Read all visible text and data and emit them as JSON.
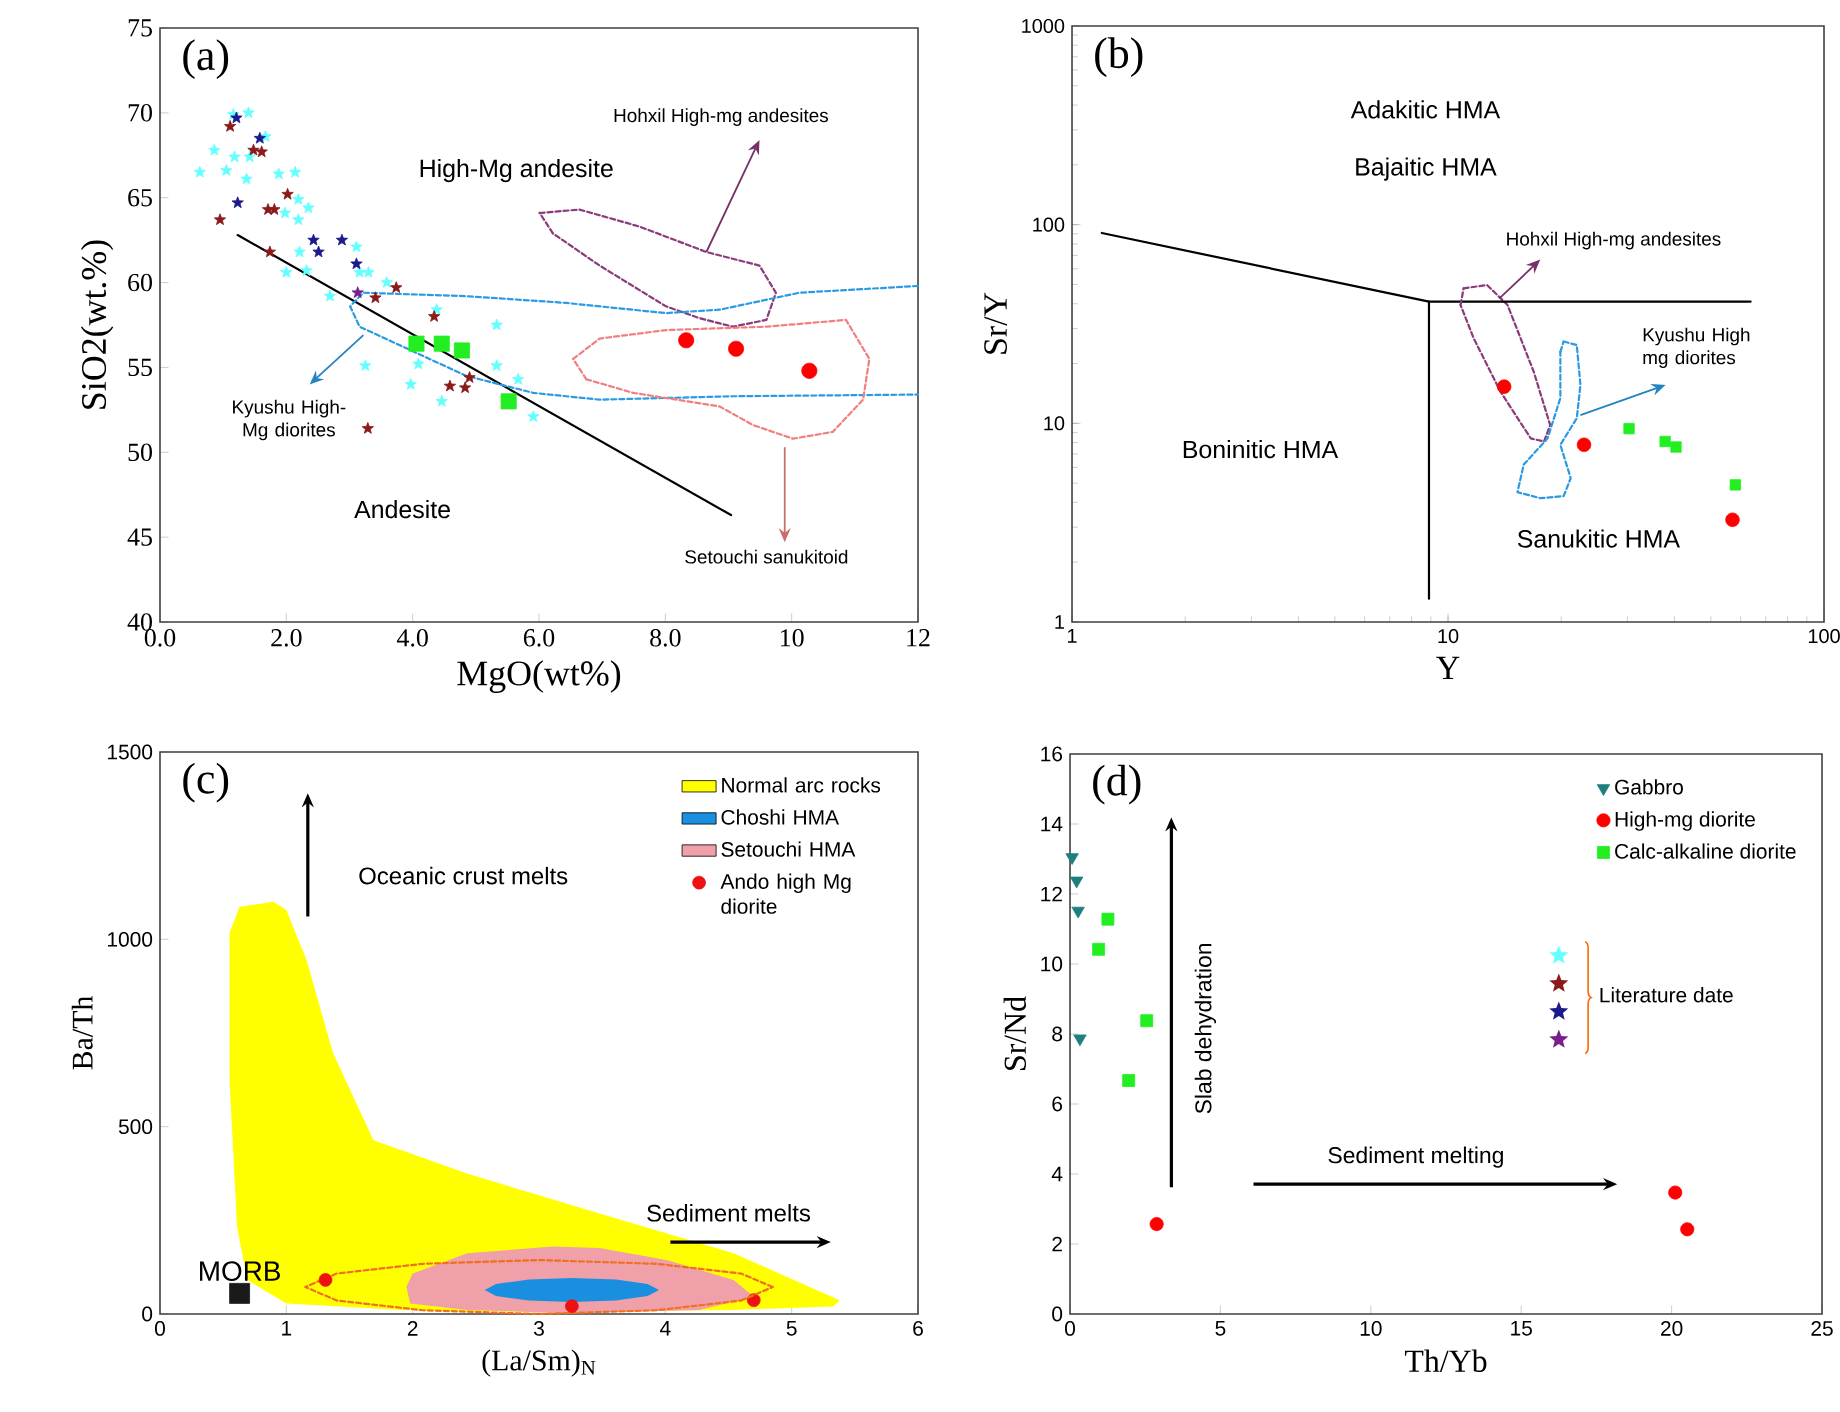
{
  "chart_data": [
    {
      "type": "scatter",
      "title": "(a)",
      "xlabel": "MgO(wt%)",
      "ylabel": "SiO2(wt.%)",
      "xlim": [
        0,
        12
      ],
      "ylim": [
        40,
        75
      ],
      "xticks": [
        {
          "value": 0,
          "label": "0.0"
        },
        {
          "value": 2,
          "label": "2.0"
        },
        {
          "value": 4,
          "label": "4.0"
        },
        {
          "value": 6,
          "label": "6.0"
        },
        {
          "value": 8,
          "label": "8.0"
        },
        10,
        12
      ],
      "yticks": [
        40,
        45,
        50,
        55,
        60,
        65,
        70,
        75
      ],
      "annotations": [
        "High-Mg andesite",
        "Andesite",
        {
          "text": "Hohxil High-mg andesites",
          "x": 8.65,
          "y": 61.8
        },
        {
          "text": "Kyushu High-Mg diorites",
          "x": 3.22,
          "y": 56.9
        },
        "Setouchi sanukitoid"
      ],
      "series": [
        {
          "color": "#66ffff",
          "marker": "star",
          "x": [
            0.63,
            0.86,
            1.05,
            1.18,
            1.16,
            1.4,
            1.37,
            1.42,
            1.67,
            1.88,
            2.14,
            2.19,
            2.19,
            2.35,
            1.98,
            2.0,
            2.32,
            2.21,
            2.69,
            3.11,
            3.16,
            3.3,
            3.59,
            3.25,
            4.38,
            4.09,
            3.97,
            4.46,
            5.33,
            5.33,
            5.91,
            5.67
          ],
          "values": [
            66.5,
            67.8,
            66.6,
            67.4,
            69.9,
            70.0,
            66.1,
            67.4,
            68.6,
            66.4,
            66.5,
            64.9,
            63.7,
            64.4,
            64.1,
            60.6,
            60.7,
            61.8,
            59.2,
            62.1,
            60.6,
            60.6,
            60.0,
            55.1,
            58.4,
            55.2,
            54.0,
            53.0,
            57.5,
            55.1,
            52.1,
            54.3
          ]
        },
        {
          "color": "#8b1a1a",
          "marker": "star",
          "x": [
            1.11,
            1.48,
            1.61,
            0.95,
            1.71,
            1.81,
            2.02,
            1.74,
            3.41,
            3.74,
            4.34,
            4.59,
            4.83,
            4.9,
            3.29
          ],
          "values": [
            69.2,
            67.8,
            67.7,
            63.7,
            64.3,
            64.3,
            65.2,
            61.8,
            59.1,
            59.7,
            58.0,
            53.9,
            53.8,
            54.4,
            51.4
          ]
        },
        {
          "color": "#1a1a8c",
          "marker": "star",
          "x": [
            1.21,
            1.58,
            1.23,
            2.43,
            2.51,
            2.88,
            3.11
          ],
          "values": [
            69.7,
            68.5,
            64.7,
            62.5,
            61.8,
            62.5,
            61.1
          ]
        },
        {
          "color": "#7a1f8a",
          "marker": "star",
          "x": [
            3.13
          ],
          "values": [
            59.4
          ]
        },
        {
          "color": "#22ee22",
          "marker": "square",
          "x": [
            4.06,
            4.46,
            4.78,
            5.52
          ],
          "values": [
            56.4,
            56.4,
            56.0,
            53.0
          ]
        },
        {
          "color": "#ff0000",
          "marker": "circle",
          "x": [
            8.33,
            9.12,
            10.28
          ],
          "values": [
            56.6,
            56.1,
            54.8
          ]
        },
        {
          "type": "line",
          "color": "#000000",
          "line_style": "solid",
          "x": [
            1.23,
            9.04
          ],
          "values": [
            62.8,
            46.3
          ]
        },
        {
          "type": "line",
          "color": "#8b3a7a",
          "line_style": "dashed",
          "x": [
            6.01,
            6.64,
            7.59,
            8.65,
            9.49,
            9.75,
            9.6,
            9.07,
            8.54,
            8.01,
            6.96,
            6.22
          ],
          "values": [
            64.1,
            64.3,
            63.3,
            61.8,
            61.0,
            59.4,
            57.8,
            57.4,
            57.9,
            58.6,
            61.0,
            62.9
          ]
        },
        {
          "type": "line",
          "color": "#2a9be0",
          "line_style": "dashed",
          "x": [
            12.0,
            10.12,
            8.86,
            8.01,
            6.43,
            4.85,
            3.22,
            3.01,
            3.16,
            3.8,
            4.85,
            5.91,
            6.96,
            9.07,
            12.0
          ],
          "values": [
            59.8,
            59.4,
            58.4,
            58.2,
            58.8,
            59.2,
            59.4,
            58.6,
            57.4,
            56.3,
            54.5,
            53.5,
            53.1,
            53.3,
            53.4
          ]
        },
        {
          "type": "line",
          "color": "#f08080",
          "line_style": "dashed",
          "x": [
            6.54,
            6.96,
            8.01,
            9.6,
            10.86,
            11.23,
            11.13,
            10.65,
            10.02,
            9.39,
            8.86,
            7.49,
            6.75
          ],
          "values": [
            55.5,
            56.7,
            57.2,
            57.4,
            57.8,
            55.5,
            53.1,
            51.2,
            50.8,
            51.6,
            52.7,
            53.5,
            54.3
          ]
        }
      ]
    },
    {
      "type": "scatter",
      "title": "(b)",
      "xlabel": "Y",
      "ylabel": "Sr/Y",
      "log": "xy",
      "xlim": [
        1,
        100
      ],
      "ylim": [
        1,
        1000
      ],
      "xticks": [
        1,
        10,
        100
      ],
      "yticks": [
        1,
        10,
        100,
        1000
      ],
      "annotations": [
        "Adakitic HMA",
        "Bajaitic HMA",
        {
          "text": "Hohxil High-mg andesites",
          "x": 13.7,
          "y": 42.6
        },
        {
          "text": "Kyushu High mg diorites",
          "x": 22.5,
          "y": 11.0
        },
        "Boninitic HMA",
        "Sanukitic HMA"
      ],
      "series": [
        {
          "type": "line",
          "color": "#8b3a7a",
          "line_style": "dashed",
          "x": [
            11.0,
            12.7,
            14.4,
            16.9,
            18.7,
            18.0,
            16.6,
            13.8,
            11.7,
            10.8
          ],
          "values": [
            47.8,
            49.7,
            39.4,
            18.2,
            9.8,
            8.1,
            8.4,
            14.4,
            26.8,
            39.4
          ]
        },
        {
          "type": "line",
          "color": "#2a9be0",
          "line_style": "dashed",
          "x": [
            20.3,
            22.0,
            22.5,
            22.0,
            19.9,
            21.2,
            20.3,
            17.6,
            15.3,
            15.9,
            18.4,
            19.9,
            19.9
          ],
          "values": [
            25.8,
            24.8,
            15.6,
            10.6,
            7.8,
            5.3,
            4.3,
            4.2,
            4.5,
            6.2,
            8.4,
            13.4,
            22.9
          ]
        },
        {
          "type": "line",
          "color": "#000000",
          "line_style": "solid",
          "x": [
            1.2,
            8.9,
            63.8
          ],
          "values": [
            90.8,
            41,
            41
          ]
        },
        {
          "type": "line",
          "color": "#000000",
          "line_style": "solid",
          "x": [
            8.9,
            8.9
          ],
          "values": [
            41,
            1.31
          ]
        },
        {
          "color": "#22ee22",
          "marker": "square",
          "x": [
            30.3,
            37.8,
            40.4,
            58.1
          ],
          "values": [
            9.4,
            8.1,
            7.6,
            4.9
          ]
        },
        {
          "color": "#ff0000",
          "marker": "circle",
          "x": [
            14.1,
            23.0,
            57.1
          ],
          "values": [
            15.3,
            7.8,
            3.27
          ]
        }
      ]
    },
    {
      "type": "scatter",
      "title": "(c)",
      "xlabel": "(La/Sm)$_{N}$",
      "ylabel": "Ba/Th",
      "xlim": [
        0,
        6
      ],
      "ylim": [
        0,
        1500
      ],
      "xticks": [
        0,
        1,
        2,
        3,
        4,
        5,
        6
      ],
      "yticks": [
        0,
        500,
        1000,
        1500
      ],
      "legend": "top right",
      "annotations": [
        "Oceanic crust melts",
        "Sediment melts",
        {
          "text": "MORB",
          "x": 0.63,
          "y": 55
        }
      ],
      "series": [
        {
          "type": "area",
          "name": "Normal arc rocks",
          "color": "#ffff00",
          "x": [
            0.55,
            0.63,
            0.9,
            1.0,
            1.16,
            1.37,
            1.69,
            2.43,
            3.48,
            4.54,
            5.38,
            5.33,
            4.54,
            2.96,
            1.9,
            1.0,
            0.69,
            0.61,
            0.55
          ],
          "values": [
            1016,
            1087,
            1100,
            1078,
            945,
            696,
            464,
            375,
            268,
            162,
            37,
            20,
            11,
            5,
            11,
            28,
            91,
            233,
            625
          ]
        },
        {
          "type": "area",
          "name": "Choshi HMA",
          "color": "#1a8fe0",
          "x": [
            3.95,
            3.86,
            3.61,
            3.26,
            2.92,
            2.66,
            2.57,
            2.66,
            2.92,
            3.26,
            3.61,
            3.86
          ],
          "values": [
            64,
            80,
            92,
            96,
            92,
            80,
            64,
            48,
            36,
            32,
            36,
            48
          ]
        },
        {
          "type": "area",
          "name": "Setouchi HMA",
          "color": "#f0a0a8",
          "x": [
            2.0,
            2.43,
            3.11,
            3.48,
            4.01,
            4.54,
            4.7,
            4.27,
            3.22,
            2.43,
            1.98,
            1.95
          ],
          "values": [
            108,
            162,
            180,
            176,
            144,
            91,
            46,
            11,
            2,
            11,
            28,
            73
          ]
        },
        {
          "type": "line",
          "color": "#f07020",
          "line_style": "dashed",
          "x": [
            4.85,
            4.6,
            3.93,
            3.0,
            2.08,
            1.4,
            1.15,
            1.4,
            2.08,
            3.0,
            3.93,
            4.6
          ],
          "values": [
            72,
            108,
            134,
            144,
            134,
            108,
            72,
            36,
            10,
            0,
            10,
            36
          ]
        },
        {
          "name": "Ando high Mg diorite",
          "color": "#ee1111",
          "marker": "circle",
          "x": [
            1.31,
            3.26,
            4.7
          ],
          "values": [
            91,
            21,
            37
          ]
        },
        {
          "color": "#1a1a1a",
          "marker": "square",
          "x": [
            0.63
          ],
          "values": [
            55
          ]
        }
      ]
    },
    {
      "type": "scatter",
      "title": "(d)",
      "xlabel": "Th/Yb",
      "ylabel": "Sr/Nd",
      "xlim": [
        0,
        25
      ],
      "ylim": [
        0,
        16
      ],
      "xticks": [
        0,
        5,
        10,
        15,
        20,
        25
      ],
      "yticks": [
        0,
        2,
        4,
        6,
        8,
        10,
        12,
        14,
        16
      ],
      "legend": "top right",
      "annotations": [
        "Slab dehydration",
        "Sediment melting",
        "Literature date"
      ],
      "series": [
        {
          "name": "Gabbro",
          "color": "#1f7f7f",
          "marker": "triangle",
          "x": [
            0.07,
            0.22,
            0.27,
            0.33
          ],
          "values": [
            13.05,
            12.38,
            11.52,
            7.87
          ]
        },
        {
          "name": "High-mg diorite",
          "color": "#ff0000",
          "marker": "circle",
          "x": [
            2.88,
            20.12,
            20.52
          ],
          "values": [
            2.57,
            3.47,
            2.42
          ]
        },
        {
          "name": "Calc-alkaline diorite",
          "color": "#22ee22",
          "marker": "square",
          "x": [
            1.26,
            0.95,
            2.55,
            1.95
          ],
          "values": [
            11.28,
            10.42,
            8.38,
            6.67
          ]
        }
      ]
    }
  ]
}
